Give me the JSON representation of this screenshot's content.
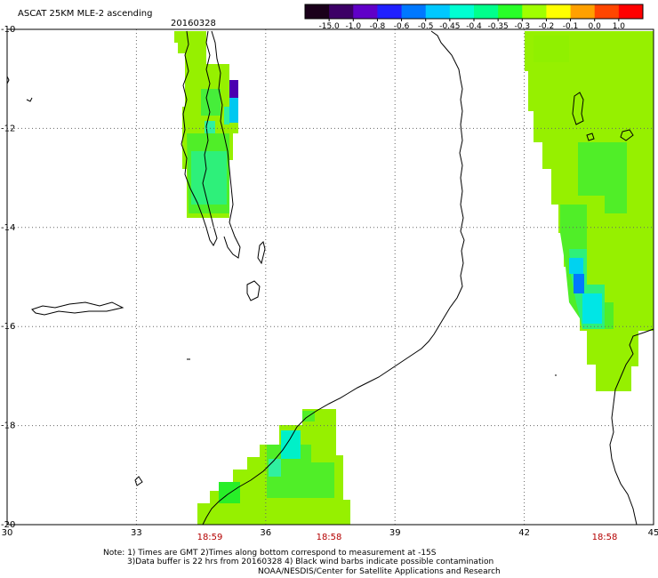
{
  "header": {
    "title": "ASCAT 25KM MLE-2 ascending",
    "date": "20160328"
  },
  "colorbar": {
    "labels": [
      "-15.0",
      "-1.0",
      "-0.8",
      "-0.6",
      "-0.5",
      "-0.45",
      "-0.4",
      "-0.35",
      "-0.3",
      "-0.2",
      "-0.1",
      "0.0",
      "1.0"
    ],
    "colors": [
      "#1a001a",
      "#3c0066",
      "#6000c8",
      "#2020ff",
      "#0078ff",
      "#00c8ff",
      "#00ffd2",
      "#00ff8c",
      "#28ff28",
      "#a0ff00",
      "#ffff00",
      "#ffa000",
      "#ff4600",
      "#ff0000"
    ]
  },
  "axes": {
    "lon_labels": [
      "30",
      "33",
      "36",
      "39",
      "42",
      "45"
    ],
    "lat_labels": [
      "-10",
      "-12",
      "-14",
      "-16",
      "-18",
      "-20"
    ]
  },
  "times": [
    "18:59",
    "18:58",
    "18:58"
  ],
  "notes": {
    "line1": "Note: 1) Times are GMT 2)Times along bottom correspond to measurement at -15S",
    "line2": "3)Data buffer is 22 hrs from 20160328 4) Black wind barbs indicate possible contamination",
    "line3": "NOAA/NESDIS/Center for Satellite Applications and Research"
  }
}
